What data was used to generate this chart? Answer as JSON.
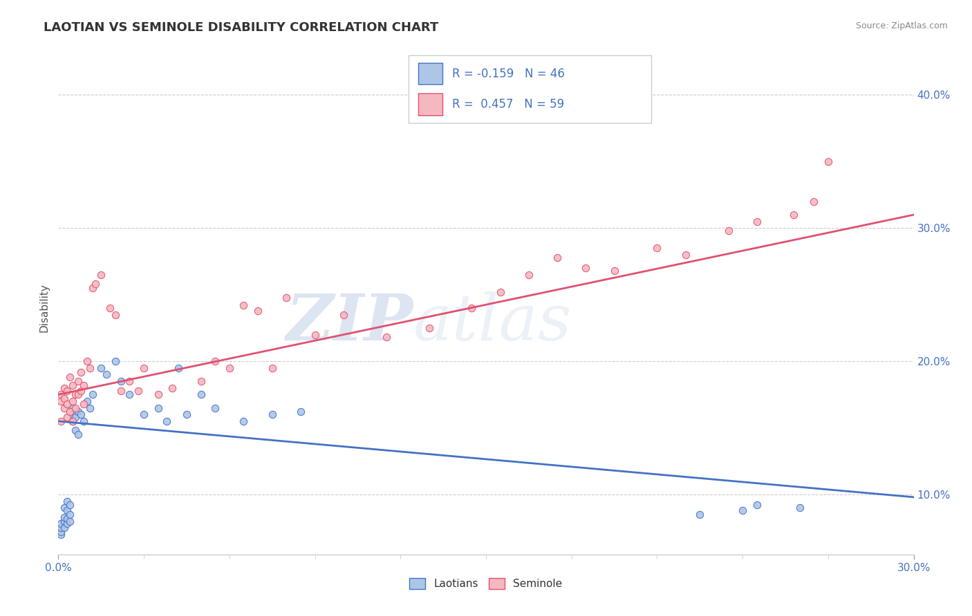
{
  "title": "LAOTIAN VS SEMINOLE DISABILITY CORRELATION CHART",
  "source": "Source: ZipAtlas.com",
  "ylabel": "Disability",
  "xmin": 0.0,
  "xmax": 0.3,
  "ymin": 0.055,
  "ymax": 0.425,
  "yticks": [
    0.1,
    0.2,
    0.3,
    0.4
  ],
  "ytick_labels": [
    "10.0%",
    "20.0%",
    "30.0%",
    "40.0%"
  ],
  "laotian_color": "#adc6e8",
  "laotian_line_color": "#4472c4",
  "seminole_color": "#f5b8c0",
  "seminole_line_color": "#e05070",
  "R_laotian": -0.159,
  "N_laotian": 46,
  "R_seminole": 0.457,
  "N_seminole": 59,
  "watermark_zip": "ZIP",
  "watermark_atlas": "atlas",
  "laotian_x": [
    0.001,
    0.001,
    0.001,
    0.001,
    0.002,
    0.002,
    0.002,
    0.002,
    0.003,
    0.003,
    0.003,
    0.003,
    0.004,
    0.004,
    0.004,
    0.005,
    0.005,
    0.005,
    0.006,
    0.006,
    0.007,
    0.007,
    0.008,
    0.009,
    0.01,
    0.011,
    0.012,
    0.015,
    0.017,
    0.02,
    0.022,
    0.025,
    0.03,
    0.035,
    0.038,
    0.042,
    0.045,
    0.05,
    0.055,
    0.065,
    0.075,
    0.085,
    0.225,
    0.24,
    0.245,
    0.26
  ],
  "laotian_y": [
    0.07,
    0.072,
    0.075,
    0.078,
    0.075,
    0.08,
    0.083,
    0.09,
    0.078,
    0.082,
    0.088,
    0.095,
    0.08,
    0.085,
    0.092,
    0.155,
    0.16,
    0.165,
    0.148,
    0.158,
    0.145,
    0.162,
    0.16,
    0.155,
    0.17,
    0.165,
    0.175,
    0.195,
    0.19,
    0.2,
    0.185,
    0.175,
    0.16,
    0.165,
    0.155,
    0.195,
    0.16,
    0.175,
    0.165,
    0.155,
    0.16,
    0.162,
    0.085,
    0.088,
    0.092,
    0.09
  ],
  "seminole_x": [
    0.001,
    0.001,
    0.001,
    0.002,
    0.002,
    0.002,
    0.003,
    0.003,
    0.003,
    0.004,
    0.004,
    0.005,
    0.005,
    0.005,
    0.006,
    0.006,
    0.007,
    0.007,
    0.008,
    0.008,
    0.009,
    0.009,
    0.01,
    0.011,
    0.012,
    0.013,
    0.015,
    0.018,
    0.02,
    0.022,
    0.025,
    0.028,
    0.03,
    0.035,
    0.04,
    0.05,
    0.055,
    0.06,
    0.065,
    0.07,
    0.075,
    0.08,
    0.09,
    0.1,
    0.115,
    0.13,
    0.145,
    0.155,
    0.165,
    0.175,
    0.185,
    0.195,
    0.21,
    0.22,
    0.235,
    0.245,
    0.258,
    0.265,
    0.27
  ],
  "seminole_y": [
    0.155,
    0.17,
    0.175,
    0.165,
    0.172,
    0.18,
    0.158,
    0.168,
    0.178,
    0.162,
    0.188,
    0.155,
    0.17,
    0.182,
    0.165,
    0.175,
    0.185,
    0.175,
    0.178,
    0.192,
    0.168,
    0.182,
    0.2,
    0.195,
    0.255,
    0.258,
    0.265,
    0.24,
    0.235,
    0.178,
    0.185,
    0.178,
    0.195,
    0.175,
    0.18,
    0.185,
    0.2,
    0.195,
    0.242,
    0.238,
    0.195,
    0.248,
    0.22,
    0.235,
    0.218,
    0.225,
    0.24,
    0.252,
    0.265,
    0.278,
    0.27,
    0.268,
    0.285,
    0.28,
    0.298,
    0.305,
    0.31,
    0.32,
    0.35
  ],
  "blue_line_x0": 0.0,
  "blue_line_y0": 0.155,
  "blue_line_x1": 0.3,
  "blue_line_y1": 0.098,
  "pink_line_x0": 0.0,
  "pink_line_y0": 0.175,
  "pink_line_x1": 0.3,
  "pink_line_y1": 0.31
}
